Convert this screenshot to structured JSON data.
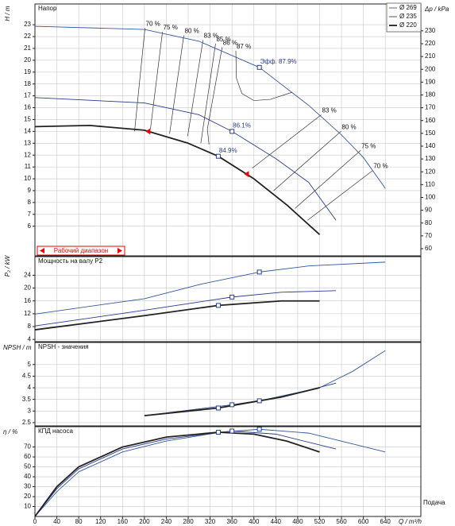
{
  "chart_data": [
    {
      "type": "line",
      "title": "Напор",
      "y_label": "H / m",
      "y2_label": "Δp / kPa",
      "xlim": [
        0,
        705
      ],
      "ylim": [
        3.5,
        24.75
      ],
      "yticks": [
        6,
        7,
        8,
        9,
        10,
        11,
        12,
        13,
        14,
        15,
        16,
        17,
        18,
        19,
        20,
        21,
        22,
        23
      ],
      "y2lim": [
        54.4,
        251
      ],
      "y2ticks": [
        60,
        70,
        80,
        90,
        100,
        110,
        120,
        130,
        140,
        150,
        160,
        170,
        180,
        190,
        200,
        210,
        220,
        230
      ],
      "grid": true,
      "legend": "upper right",
      "series": [
        {
          "name": "Ø 269",
          "color": "#34589a",
          "x": [
            0,
            200,
            300,
            410,
            500,
            560,
            600,
            640
          ],
          "values": [
            22.87,
            22.6,
            21.6,
            19.4,
            16.2,
            13.7,
            11.8,
            9.2
          ]
        },
        {
          "name": "Ø 235",
          "color": "#2a3c8c",
          "x": [
            0,
            200,
            300,
            360,
            440,
            500,
            550
          ],
          "values": [
            16.85,
            16.4,
            15.4,
            14.0,
            11.7,
            9.7,
            6.5
          ]
        },
        {
          "name": "Ø 220",
          "color": "#222222",
          "x": [
            0,
            100,
            200,
            280,
            335,
            400,
            460,
            520
          ],
          "values": [
            14.4,
            14.5,
            14.1,
            13.0,
            11.9,
            10.0,
            7.8,
            5.3
          ]
        }
      ],
      "efficiency_lines": [
        {
          "label": "70 %",
          "x": [
            201,
            182
          ],
          "values": [
            22.7,
            14.0
          ]
        },
        {
          "label": "75 %",
          "x": [
            233,
            211
          ],
          "values": [
            22.4,
            14.2
          ]
        },
        {
          "label": "80 %",
          "x": [
            272,
            246
          ],
          "values": [
            22.1,
            13.8
          ]
        },
        {
          "label": "83 %",
          "x": [
            307,
            279
          ],
          "values": [
            21.7,
            13.6
          ]
        },
        {
          "label": "85 %",
          "x": [
            330,
            303
          ],
          "values": [
            21.4,
            13.0
          ]
        },
        {
          "label": "86 %",
          "x": [
            342,
            315,
            318
          ],
          "values": [
            21.1,
            14.2,
            12.9
          ]
        },
        {
          "label": "87 %",
          "x": [
            367,
            368,
            378,
            400,
            430,
            470
          ],
          "values": [
            20.8,
            18.5,
            17.2,
            16.6,
            16.7,
            17.3
          ]
        },
        {
          "label": "83 %",
          "x": [
            523,
            397
          ],
          "values": [
            15.4,
            10.9
          ]
        },
        {
          "label": "80 %",
          "x": [
            559,
            436
          ],
          "values": [
            14.0,
            9.0
          ]
        },
        {
          "label": "75 %",
          "x": [
            595,
            475
          ],
          "values": [
            12.4,
            7.5
          ]
        },
        {
          "label": "70 %",
          "x": [
            617,
            498
          ],
          "values": [
            10.7,
            6.5
          ]
        }
      ],
      "points": [
        {
          "label": "Эфф. 87.9%",
          "x": 410,
          "value": 19.4
        },
        {
          "label": "86.1%",
          "x": 360,
          "value": 14.0
        },
        {
          "label": "84.9%",
          "x": 335,
          "value": 11.9
        }
      ],
      "range_label": "Рабочий диапазон",
      "range_markers": [
        {
          "x": 208,
          "value": 14.0
        },
        {
          "x": 388,
          "value": 10.4
        }
      ]
    },
    {
      "type": "line",
      "title": "Мощность на валу P2",
      "y_label": "P₂ / kW",
      "xlim": [
        0,
        705
      ],
      "ylim": [
        3.3,
        29.8
      ],
      "yticks": [
        4,
        8,
        12,
        16,
        20,
        24
      ],
      "grid": true,
      "series": [
        {
          "name": "Ø 269",
          "color": "#34589a",
          "x": [
            0,
            200,
            300,
            410,
            500,
            640
          ],
          "values": [
            11.9,
            16.7,
            21.1,
            25.0,
            26.9,
            28.1
          ]
        },
        {
          "name": "Ø 235",
          "color": "#2a3c8c",
          "x": [
            0,
            200,
            360,
            450,
            550
          ],
          "values": [
            8.2,
            13.1,
            17.2,
            18.7,
            19.2
          ]
        },
        {
          "name": "Ø 220",
          "color": "#222222",
          "x": [
            0,
            200,
            335,
            450,
            520
          ],
          "values": [
            7.0,
            11.4,
            14.6,
            16.0,
            16.0
          ]
        }
      ],
      "points": [
        {
          "x": 410,
          "value": 25.0
        },
        {
          "x": 360,
          "value": 17.2
        },
        {
          "x": 335,
          "value": 14.6
        }
      ]
    },
    {
      "type": "line",
      "title": "NPSH - значения",
      "y_label": "NPSH / m",
      "xlim": [
        0,
        705
      ],
      "ylim": [
        2.36,
        5.95
      ],
      "yticks": [
        2.5,
        3,
        3.5,
        4,
        4.5,
        5
      ],
      "grid": true,
      "series": [
        {
          "name": "Ø 269",
          "color": "#34589a",
          "x": [
            200,
            335,
            410,
            520,
            580,
            640
          ],
          "values": [
            2.8,
            3.13,
            3.44,
            4.0,
            4.7,
            5.6
          ]
        },
        {
          "name": "Ø 235",
          "color": "#2a3c8c",
          "x": [
            200,
            360,
            450,
            550
          ],
          "values": [
            2.8,
            3.27,
            3.6,
            4.2
          ]
        },
        {
          "name": "Ø 220",
          "color": "#222222",
          "x": [
            200,
            335,
            450,
            520
          ],
          "values": [
            2.8,
            3.13,
            3.6,
            4.0
          ]
        }
      ],
      "points": [
        {
          "x": 335,
          "value": 3.13
        },
        {
          "x": 360,
          "value": 3.27
        },
        {
          "x": 410,
          "value": 3.44
        }
      ]
    },
    {
      "type": "line",
      "title": "КПД насоса",
      "y_label": "η / %",
      "x_label": "Q / m³/h",
      "x_title": "Подача",
      "xlim": [
        0,
        705
      ],
      "ylim": [
        0,
        90.5
      ],
      "yticks": [
        10,
        20,
        30,
        40,
        50,
        60,
        70
      ],
      "xticks": [
        0,
        40,
        80,
        120,
        160,
        200,
        240,
        280,
        320,
        360,
        400,
        440,
        480,
        520,
        560,
        600,
        640
      ],
      "grid": true,
      "series": [
        {
          "name": "Ø 269",
          "color": "#34589a",
          "x": [
            0,
            40,
            80,
            160,
            240,
            340,
            410,
            500,
            640
          ],
          "values": [
            0,
            25,
            45,
            65,
            76,
            85,
            87.9,
            84,
            65
          ]
        },
        {
          "name": "Ø 235",
          "color": "#2a3c8c",
          "x": [
            0,
            40,
            80,
            160,
            240,
            360,
            440,
            550
          ],
          "values": [
            0,
            28,
            48,
            68,
            78,
            86.1,
            83,
            68
          ]
        },
        {
          "name": "Ø 220",
          "color": "#222222",
          "x": [
            0,
            40,
            80,
            160,
            240,
            335,
            400,
            460,
            520
          ],
          "values": [
            0,
            30,
            50,
            70,
            80,
            84.9,
            83,
            76,
            65
          ]
        }
      ],
      "points": [
        {
          "x": 335,
          "value": 84.9
        },
        {
          "x": 360,
          "value": 86.1
        },
        {
          "x": 410,
          "value": 87.9
        }
      ]
    }
  ]
}
